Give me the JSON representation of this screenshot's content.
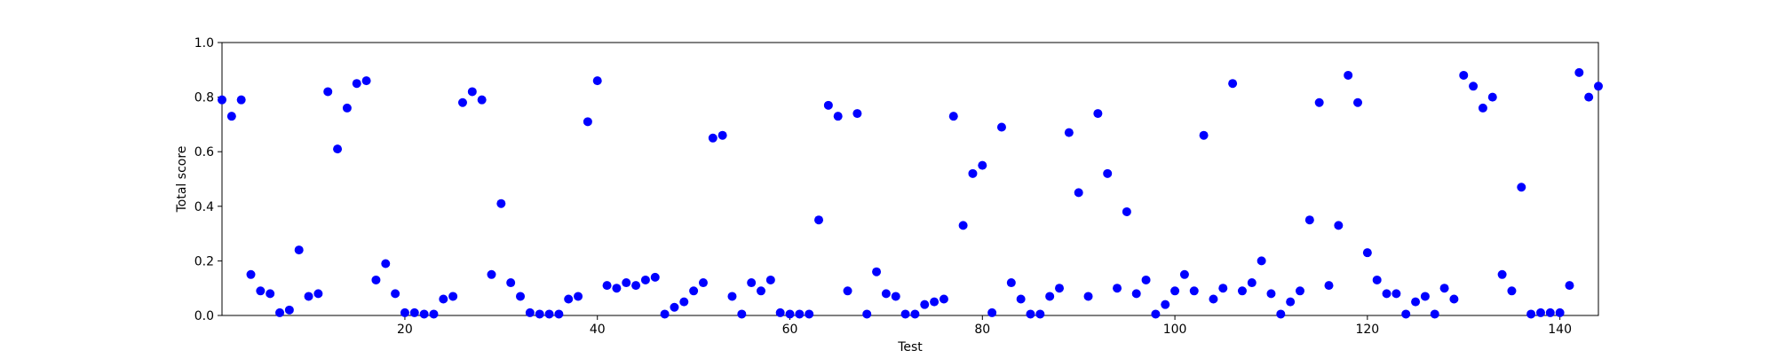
{
  "chart_data": {
    "type": "scatter",
    "title": "",
    "xlabel": "Test",
    "ylabel": "Total score",
    "xlim": [
      1,
      144
    ],
    "ylim": [
      0,
      1.0
    ],
    "xticks": [
      20,
      40,
      60,
      80,
      100,
      120,
      140
    ],
    "yticks": [
      0.0,
      0.2,
      0.4,
      0.6,
      0.8,
      1.0
    ],
    "grid": false,
    "marker_color": "#0000ff",
    "series": [
      {
        "x": [
          1,
          2,
          3,
          4,
          5,
          6,
          7,
          8,
          9,
          10,
          11,
          12,
          13,
          14,
          15,
          16,
          17,
          18,
          19,
          20,
          21,
          22,
          23,
          24,
          25,
          26,
          27,
          28,
          29,
          30,
          31,
          32,
          33,
          34,
          35,
          36,
          37,
          38,
          39,
          40,
          41,
          42,
          43,
          44,
          45,
          46,
          47,
          48,
          49,
          50,
          51,
          52,
          53,
          54,
          55,
          56,
          57,
          58,
          59,
          60,
          61,
          62,
          63,
          64,
          65,
          66,
          67,
          68,
          69,
          70,
          71,
          72,
          73,
          74,
          75,
          76,
          77,
          78,
          79,
          80,
          81,
          82,
          83,
          84,
          85,
          86,
          87,
          88,
          89,
          90,
          91,
          92,
          93,
          94,
          95,
          96,
          97,
          98,
          99,
          100,
          101,
          102,
          103,
          104,
          105,
          106,
          107,
          108,
          109,
          110,
          111,
          112,
          113,
          114,
          115,
          116,
          117,
          118,
          119,
          120,
          121,
          122,
          123,
          124,
          125,
          126,
          127,
          128,
          129,
          130,
          131,
          132,
          133,
          134,
          135,
          136,
          137,
          138,
          139,
          140,
          141,
          142,
          143,
          144
        ],
        "y": [
          0.79,
          0.73,
          0.79,
          0.15,
          0.09,
          0.08,
          0.01,
          0.02,
          0.24,
          0.07,
          0.08,
          0.82,
          0.61,
          0.76,
          0.85,
          0.86,
          0.13,
          0.19,
          0.08,
          0.01,
          0.01,
          0.005,
          0.005,
          0.06,
          0.07,
          0.78,
          0.82,
          0.79,
          0.15,
          0.41,
          0.12,
          0.07,
          0.01,
          0.005,
          0.005,
          0.005,
          0.06,
          0.07,
          0.71,
          0.86,
          0.11,
          0.1,
          0.12,
          0.11,
          0.13,
          0.14,
          0.005,
          0.03,
          0.05,
          0.09,
          0.12,
          0.65,
          0.66,
          0.07,
          0.005,
          0.12,
          0.09,
          0.13,
          0.01,
          0.005,
          0.005,
          0.005,
          0.35,
          0.77,
          0.73,
          0.09,
          0.74,
          0.005,
          0.16,
          0.08,
          0.07,
          0.005,
          0.005,
          0.04,
          0.05,
          0.06,
          0.73,
          0.33,
          0.52,
          0.55,
          0.01,
          0.69,
          0.12,
          0.06,
          0.005,
          0.005,
          0.07,
          0.1,
          0.67,
          0.45,
          0.07,
          0.74,
          0.52,
          0.1,
          0.38,
          0.08,
          0.13,
          0.005,
          0.04,
          0.09,
          0.15,
          0.09,
          0.66,
          0.06,
          0.1,
          0.85,
          0.09,
          0.12,
          0.2,
          0.08,
          0.005,
          0.05,
          0.09,
          0.35,
          0.78,
          0.11,
          0.33,
          0.88,
          0.78,
          0.23,
          0.13,
          0.08,
          0.08,
          0.005,
          0.05,
          0.07,
          0.005,
          0.1,
          0.06,
          0.88,
          0.84,
          0.76,
          0.8,
          0.15,
          0.09,
          0.47,
          0.005,
          0.01,
          0.01,
          0.01,
          0.11,
          0.89,
          0.8,
          0.84
        ]
      }
    ]
  }
}
